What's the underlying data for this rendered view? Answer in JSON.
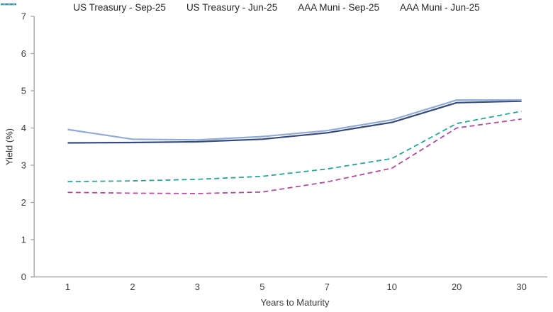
{
  "chart_data": {
    "type": "line",
    "title": "",
    "xlabel": "Years to Maturity",
    "ylabel": "Yield (%)",
    "categories": [
      "1",
      "2",
      "3",
      "5",
      "7",
      "10",
      "20",
      "30"
    ],
    "ylim": [
      0,
      7
    ],
    "ytick_interval": 1,
    "yticks": [
      "0",
      "1",
      "2",
      "3",
      "4",
      "5",
      "6",
      "7"
    ],
    "grid": false,
    "legend_position": "top",
    "axis_color": "#a6a6a6",
    "text_color": "#3c3c3c",
    "legend_text_color": "#262626",
    "series": [
      {
        "name": "US Treasury - Sep-25",
        "color": "#35497b",
        "dash": "solid",
        "values": [
          3.6,
          3.61,
          3.63,
          3.7,
          3.87,
          4.15,
          4.68,
          4.72
        ]
      },
      {
        "name": "US Treasury - Jun-25",
        "color": "#8faad8",
        "dash": "solid",
        "values": [
          3.96,
          3.7,
          3.68,
          3.77,
          3.93,
          4.22,
          4.75,
          4.75
        ]
      },
      {
        "name": "AAA Muni - Sep-25",
        "color": "#b04c9e",
        "dash": "dashed",
        "values": [
          2.27,
          2.25,
          2.24,
          2.28,
          2.55,
          2.92,
          4.0,
          4.24
        ]
      },
      {
        "name": "AAA Muni - Jun-25",
        "color": "#28a495",
        "dash": "dashed",
        "values": [
          2.56,
          2.58,
          2.62,
          2.7,
          2.9,
          3.18,
          4.12,
          4.45
        ]
      }
    ]
  }
}
